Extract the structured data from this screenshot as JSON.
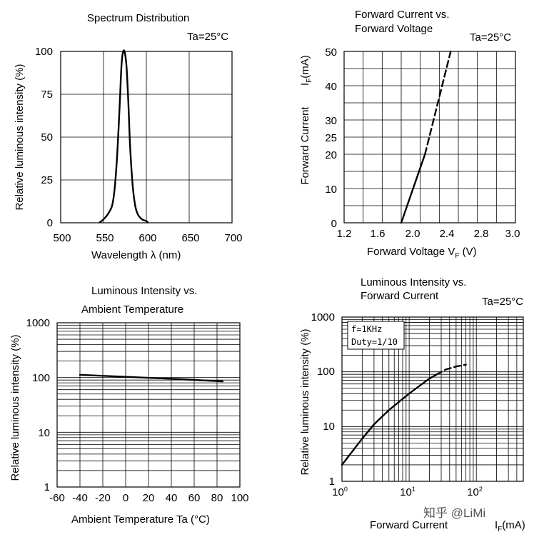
{
  "watermark": "知乎 @LiMi",
  "chart_data": [
    {
      "id": "spectrum",
      "type": "line",
      "title": "Spectrum Distribution",
      "condition": "Ta=25°C",
      "xlabel": "Wavelength  λ (nm)",
      "ylabel": "Relative luminous intensity  (%)",
      "xlim": [
        500,
        700
      ],
      "ylim": [
        0,
        100
      ],
      "x_ticks": [
        "500",
        "550",
        "600",
        "650",
        "700"
      ],
      "y_ticks": [
        "0",
        "25",
        "50",
        "75",
        "100"
      ],
      "grid": true,
      "series": [
        {
          "style": "solid",
          "x": [
            545,
            550,
            555,
            560,
            563,
            566,
            569,
            571,
            573,
            575,
            577,
            579,
            581,
            584,
            587,
            590,
            595,
            600,
            602
          ],
          "y": [
            0,
            2,
            5,
            10,
            20,
            40,
            70,
            92,
            100,
            99,
            90,
            70,
            45,
            22,
            10,
            5,
            2,
            1,
            0
          ]
        }
      ]
    },
    {
      "id": "if_vf",
      "type": "line",
      "title": "Forward Current vs.",
      "title2": "Forward Voltage",
      "condition": "Ta=25°C",
      "xlabel": "Forward Voltage  V",
      "xlabel_sub": "F",
      "xlabel_unit": " (V)",
      "ylabel": "Forward Current",
      "ylabel_sym": "I",
      "ylabel_sub": "F",
      "ylabel_unit": "(mA)",
      "xlim": [
        1.2,
        3.0
      ],
      "ylim": [
        0,
        50
      ],
      "x_ticks": [
        "1.2",
        "1.6",
        "2.0",
        "2.4",
        "2.8",
        "3.0"
      ],
      "y_ticks": [
        "0",
        "10",
        "20",
        "25",
        "30",
        "40",
        "50"
      ],
      "grid": true,
      "series": [
        {
          "style": "solid",
          "x": [
            1.8,
            2.05
          ],
          "y": [
            0,
            20
          ]
        },
        {
          "style": "dashed",
          "x": [
            2.05,
            2.32
          ],
          "y": [
            20,
            50
          ]
        }
      ]
    },
    {
      "id": "iv_ta",
      "type": "line",
      "title": "Luminous Intensity vs.",
      "title2": "Ambient Temperature",
      "xlabel": "Ambient Temperature Ta (°C)",
      "ylabel": "Relative luminous intensity  (%)",
      "xlim": [
        -60,
        100
      ],
      "ylim": [
        1,
        1000
      ],
      "yscale": "log",
      "x_ticks": [
        "-60",
        "-40",
        "-20",
        "0",
        "20",
        "40",
        "60",
        "80",
        "100"
      ],
      "y_ticks": [
        "1",
        "10",
        "100",
        "1000"
      ],
      "grid": true,
      "series": [
        {
          "style": "solid",
          "x": [
            -40,
            0,
            40,
            85
          ],
          "y": [
            112,
            103,
            95,
            85
          ]
        }
      ]
    },
    {
      "id": "iv_if",
      "type": "line",
      "title": "Luminous Intensity vs.",
      "title2": "Forward Current",
      "condition": "Ta=25°C",
      "xlabel": "Forward Current",
      "xlabel_sym": "I",
      "xlabel_sub": "F",
      "xlabel_unit": "(mA)",
      "ylabel": "Relative luminous intensity  (%)",
      "xlim": [
        1,
        500
      ],
      "ylim": [
        1,
        1000
      ],
      "xscale": "log",
      "yscale": "log",
      "x_ticks": [
        {
          "base": "10",
          "exp": "0"
        },
        {
          "base": "10",
          "exp": "1"
        },
        {
          "base": "10",
          "exp": "2"
        }
      ],
      "y_ticks": [
        "1",
        "10",
        "100",
        "1000"
      ],
      "grid": true,
      "annotation_lines": [
        "f=1KHz",
        "Duty=1/10"
      ],
      "series": [
        {
          "style": "solid",
          "x": [
            1,
            2,
            3,
            5,
            7,
            10,
            15,
            20,
            25
          ],
          "y": [
            2,
            6,
            11,
            20,
            28,
            40,
            58,
            75,
            88
          ]
        },
        {
          "style": "dashed",
          "x": [
            25,
            35,
            50,
            70
          ],
          "y": [
            88,
            110,
            125,
            135
          ]
        }
      ]
    }
  ]
}
